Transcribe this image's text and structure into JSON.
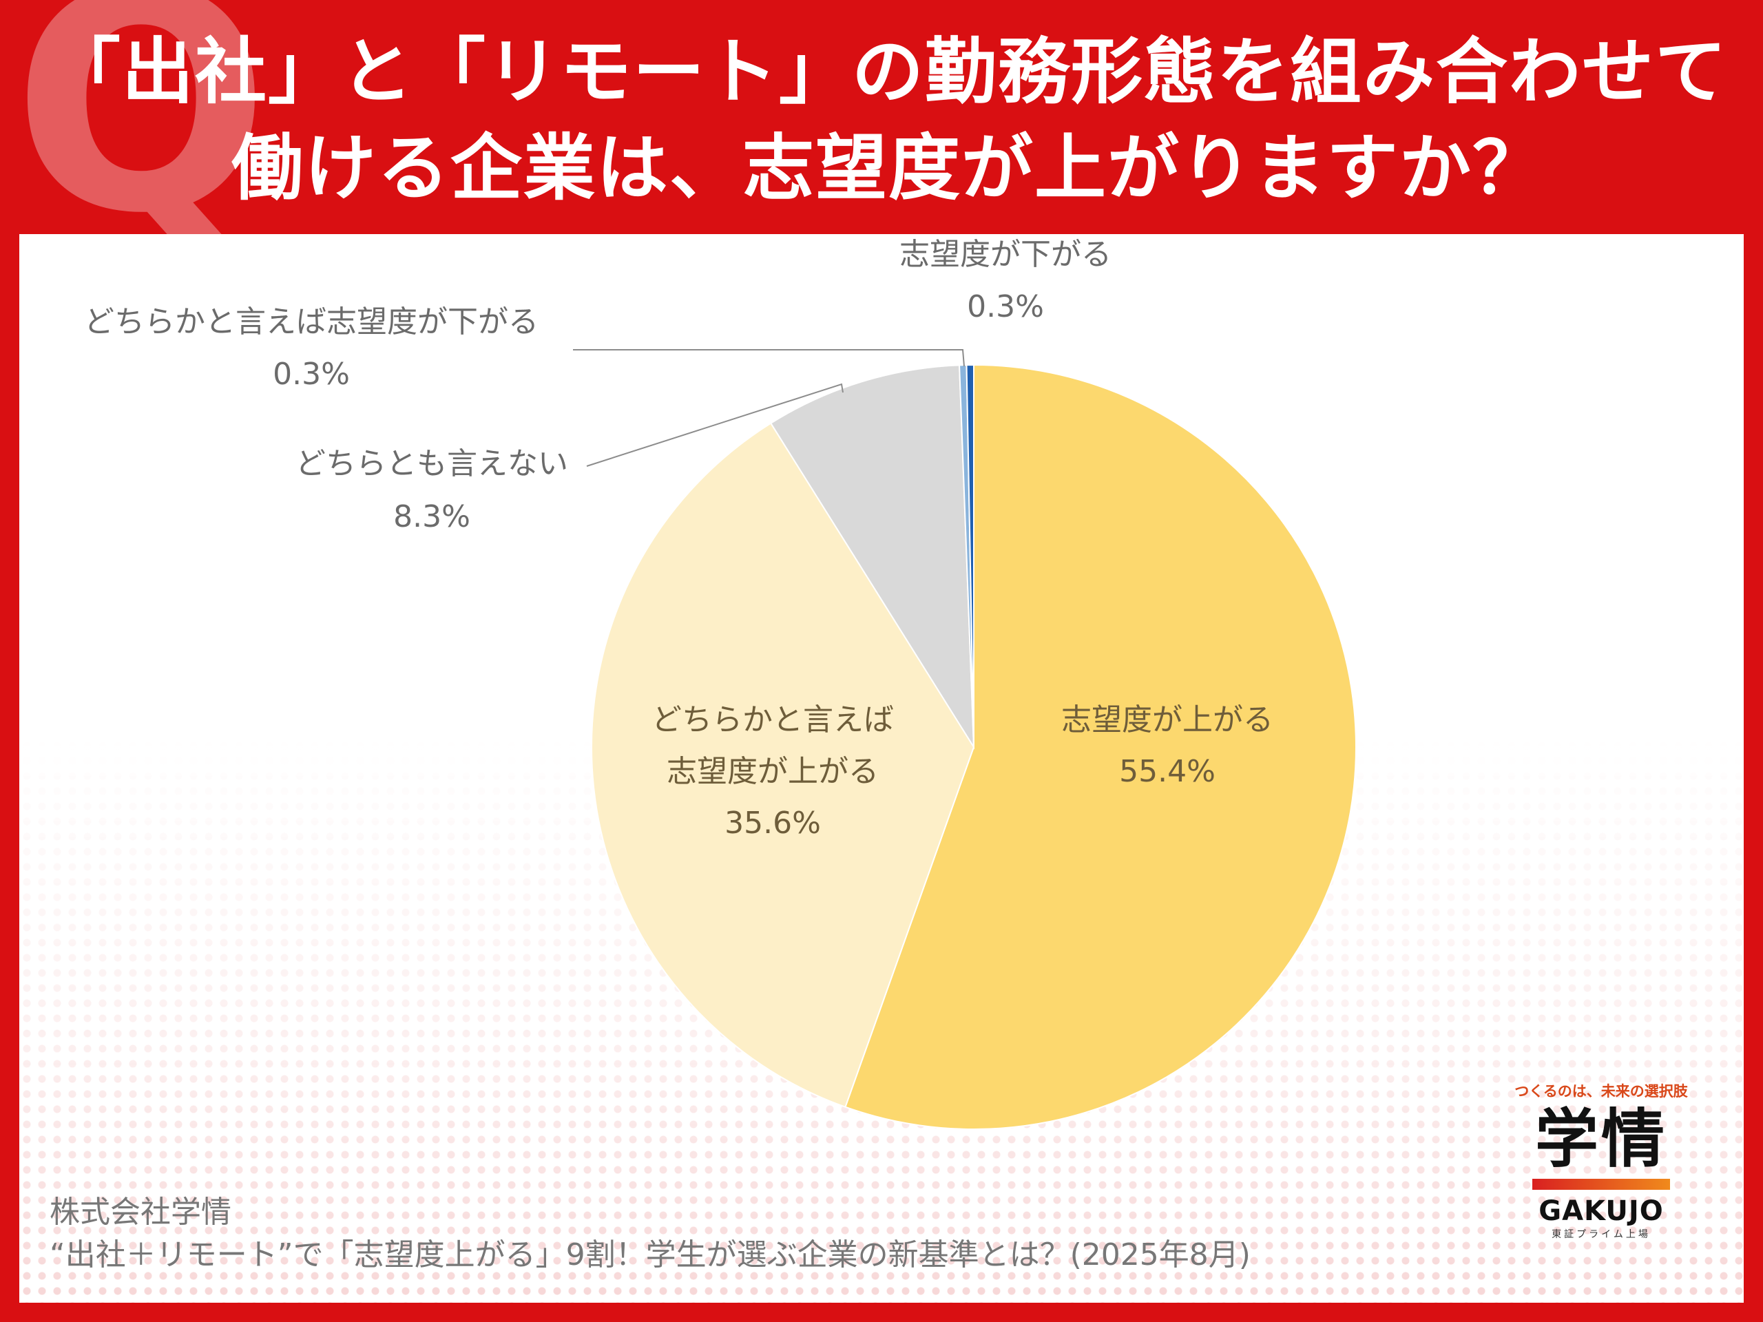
{
  "title": {
    "line1": "「出社」と「リモート」の勤務形態を組み合わせて",
    "line2": "働ける企業は、志望度が上がりますか？",
    "q_mark": "Q"
  },
  "chart_data": {
    "type": "pie",
    "slices": [
      {
        "label": "志望度が上がる",
        "value": 55.4,
        "value_label": "55.4%",
        "color": "#fcd86e"
      },
      {
        "label": "どちらかと言えば志望度が上がる",
        "label_line1": "どちらかと言えば",
        "label_line2": "志望度が上がる",
        "value": 35.6,
        "value_label": "35.6%",
        "color": "#fdefc8"
      },
      {
        "label": "どちらとも言えない",
        "value": 8.3,
        "value_label": "8.3%",
        "color": "#d9d9d9"
      },
      {
        "label": "どちらかと言えば志望度が下がる",
        "value": 0.3,
        "value_label": "0.3%",
        "color": "#8ab4dc"
      },
      {
        "label": "志望度が下がる",
        "value": 0.3,
        "value_label": "0.3%",
        "color": "#1f5fb0"
      }
    ]
  },
  "source": {
    "company": "株式会社学情",
    "article": "“出社＋リモート”で「志望度上がる」9割！学生が選ぶ企業の新基準とは？(2025年8月)"
  },
  "logo": {
    "tagline": "つくるのは、未来の選択肢",
    "kanji": "学情",
    "name": "GAKUJO",
    "sub": "東証プライム上場"
  }
}
